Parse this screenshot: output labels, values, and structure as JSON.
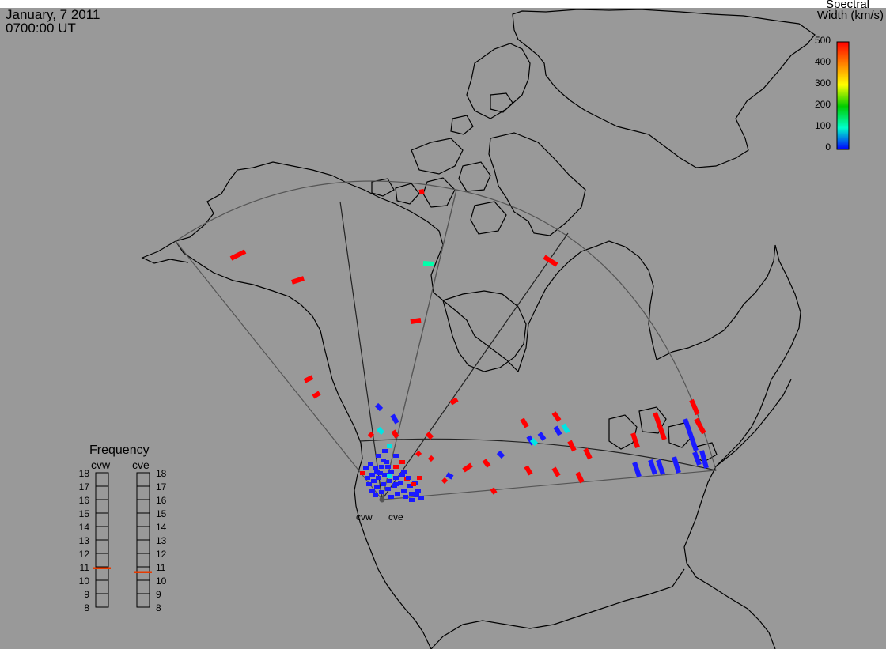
{
  "header": {
    "date": "January, 7 2011",
    "time": "0700:00 UT"
  },
  "colorbar": {
    "title_line1": "Spectral",
    "title_line2": "Width (km/s)",
    "ticks": [
      "500",
      "400",
      "300",
      "200",
      "100",
      "0"
    ],
    "stops": [
      "#ff0000",
      "#ff8000",
      "#ffff00",
      "#00cc00",
      "#00ffcc",
      "#0000ff"
    ]
  },
  "frequency": {
    "title": "Frequency",
    "radars": [
      {
        "name": "cvw",
        "value_mhz": 10.9
      },
      {
        "name": "cve",
        "value_mhz": 10.6
      }
    ],
    "scale": [
      "18",
      "17",
      "16",
      "15",
      "14",
      "13",
      "12",
      "11",
      "10",
      "9",
      "8"
    ],
    "marker_color": "#e63a00"
  },
  "sites": [
    {
      "label": "cvw"
    },
    {
      "label": "cve"
    }
  ],
  "colors": {
    "background": "#999999",
    "land_outline": "#000000",
    "fov_outline": "#555555"
  }
}
